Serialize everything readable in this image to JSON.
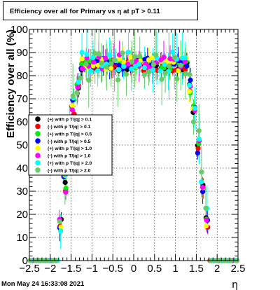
{
  "title": "Efficiency over all for Primary vs   η at pT > 0.11",
  "footer_date": "Mon May 24 16:33:08 2021",
  "chart_data": {
    "type": "scatter",
    "title": "Efficiency over all for Primary vs   η at pT > 0.11",
    "xlabel": "η",
    "ylabel": "Efficiency over all (%)",
    "xlim": [
      -2.5,
      2.5
    ],
    "ylim": [
      0,
      100
    ],
    "xticks": [
      "−2.5",
      "−2",
      "−1.5",
      "−1",
      "−0.5",
      "0",
      "0.5",
      "1",
      "1.5",
      "2",
      "2.5"
    ],
    "yticks": [
      "0",
      "10",
      "20",
      "30",
      "40",
      "50",
      "60",
      "70",
      "80",
      "90",
      "100"
    ],
    "grid": true,
    "legend_position": "left-middle",
    "series": [
      {
        "name": "(+) with p T/|q| > 0.1",
        "color": "#000000",
        "plateau": 84,
        "noise": 2.0,
        "err": 3
      },
      {
        "name": "(-) with p T/|q| > 0.1",
        "color": "#ff0000",
        "plateau": 84,
        "noise": 2.0,
        "err": 3
      },
      {
        "name": "(+) with p T/|q| > 0.5",
        "color": "#00ee00",
        "plateau": 85,
        "noise": 2.5,
        "err": 4
      },
      {
        "name": "(-) with p T/|q| > 0.5",
        "color": "#0000ff",
        "plateau": 85,
        "noise": 2.5,
        "err": 4
      },
      {
        "name": "(+) with p T/|q| > 1.0",
        "color": "#ffff00",
        "plateau": 85,
        "noise": 3.0,
        "err": 5
      },
      {
        "name": "(-) with p T/|q| > 1.0",
        "color": "#ff00ff",
        "plateau": 86,
        "noise": 3.0,
        "err": 5
      },
      {
        "name": "(+) with p T/|q| > 2.0",
        "color": "#00ffff",
        "plateau": 86,
        "noise": 4.5,
        "err": 8
      },
      {
        "name": "(-) with p T/|q| > 2.0",
        "color": "#66cc66",
        "plateau": 84,
        "noise": 6.0,
        "err": 10
      }
    ]
  }
}
